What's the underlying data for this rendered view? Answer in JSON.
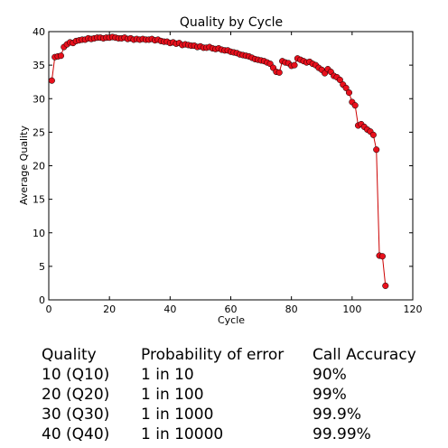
{
  "chart_data": {
    "type": "line",
    "title": "Quality by Cycle",
    "xlabel": "Cycle",
    "ylabel": "Average Quality",
    "xlim": [
      0,
      120
    ],
    "ylim": [
      0,
      40
    ],
    "xticks": [
      0,
      20,
      40,
      60,
      80,
      100,
      120
    ],
    "yticks": [
      0,
      5,
      10,
      15,
      20,
      25,
      30,
      35,
      40
    ],
    "grid": false,
    "line_color": "#cc0000",
    "marker_color": "#e8101c",
    "series": [
      {
        "x": [
          1,
          2,
          3,
          4,
          5,
          6,
          7,
          8,
          9,
          10,
          11,
          12,
          13,
          14,
          15,
          16,
          17,
          18,
          19,
          20,
          21,
          22,
          23,
          24,
          25,
          26,
          27,
          28,
          29,
          30,
          31,
          32,
          33,
          34,
          35,
          36,
          37,
          38,
          39,
          40,
          41,
          42,
          43,
          44,
          45,
          46,
          47,
          48,
          49,
          50,
          51,
          52,
          53,
          54,
          55,
          56,
          57,
          58,
          59,
          60,
          61,
          62,
          63,
          64,
          65,
          66,
          67,
          68,
          69,
          70,
          71,
          72,
          73,
          74,
          75,
          76,
          77,
          78,
          79,
          80,
          81,
          82,
          83,
          84,
          85,
          86,
          87,
          88,
          89,
          90,
          91,
          92,
          93,
          94,
          95,
          96,
          97,
          98,
          99,
          100,
          101,
          102,
          103,
          104,
          105,
          106,
          107,
          108,
          109,
          110,
          111
        ],
        "y": [
          32.7,
          36.2,
          36.3,
          36.4,
          37.7,
          38.1,
          38.4,
          38.3,
          38.6,
          38.7,
          38.8,
          38.8,
          39.0,
          38.9,
          39.0,
          39.1,
          39.1,
          39.0,
          39.1,
          39.1,
          39.2,
          39.1,
          39.0,
          39.0,
          39.1,
          38.9,
          39.0,
          38.8,
          38.9,
          38.8,
          38.9,
          38.8,
          38.8,
          38.9,
          38.7,
          38.8,
          38.6,
          38.5,
          38.5,
          38.3,
          38.4,
          38.2,
          38.3,
          38.0,
          38.1,
          38.0,
          37.9,
          37.9,
          37.7,
          37.8,
          37.6,
          37.6,
          37.7,
          37.5,
          37.4,
          37.5,
          37.3,
          37.2,
          37.2,
          37.0,
          36.9,
          36.8,
          36.6,
          36.5,
          36.4,
          36.3,
          36.1,
          35.9,
          35.8,
          35.7,
          35.6,
          35.4,
          35.2,
          34.6,
          34.0,
          33.9,
          35.6,
          35.4,
          35.3,
          34.9,
          35.0,
          36.0,
          35.8,
          35.6,
          35.4,
          35.5,
          35.2,
          35.0,
          34.6,
          34.3,
          33.8,
          34.4,
          34.0,
          33.4,
          33.2,
          32.8,
          32.1,
          31.6,
          30.9,
          29.5,
          29.0,
          26.0,
          26.2,
          25.8,
          25.4,
          25.1,
          24.6,
          22.4,
          6.6,
          6.5,
          2.1
        ]
      }
    ]
  },
  "table": {
    "headers": [
      "Quality",
      "Probability of error",
      "Call Accuracy"
    ],
    "rows": [
      [
        "10 (Q10)",
        "1 in 10",
        "90%"
      ],
      [
        "20 (Q20)",
        "1 in 100",
        "99%"
      ],
      [
        "30 (Q30)",
        "1 in 1000",
        "99.9%"
      ],
      [
        "40 (Q40)",
        "1 in 10000",
        "99.99%"
      ]
    ]
  }
}
